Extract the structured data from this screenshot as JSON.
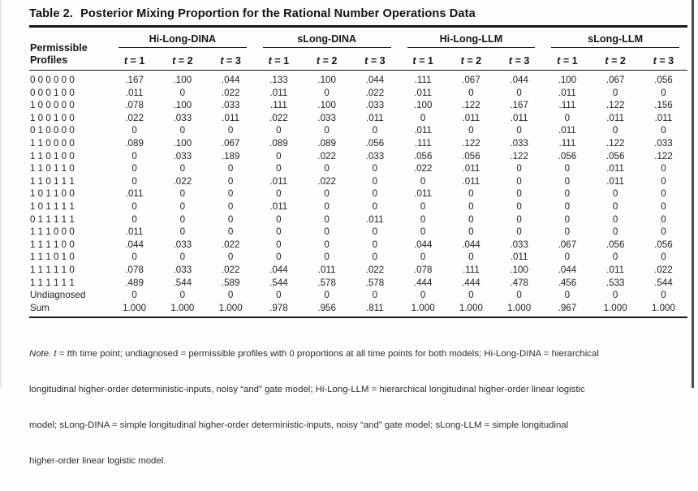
{
  "title": {
    "label": "Table 2.",
    "text": "Posterior Mixing Proportion for the Rational Number Operations Data"
  },
  "table": {
    "row_header": {
      "line1": "Permissible",
      "line2": "Profiles"
    },
    "groups": [
      "Hi-Long-DINA",
      "sLong-DINA",
      "Hi-Long-LLM",
      "sLong-LLM"
    ],
    "time_headers": [
      "t = 1",
      "t = 2",
      "t = 3"
    ],
    "rows": [
      {
        "profile": "0 0 0 0 0 0",
        "values": [
          ".167",
          ".100",
          ".044",
          ".133",
          ".100",
          ".044",
          ".111",
          ".067",
          ".044",
          ".100",
          ".067",
          ".056"
        ]
      },
      {
        "profile": "0 0 0 1 0 0",
        "values": [
          ".011",
          "0",
          ".022",
          ".011",
          "0",
          ".022",
          ".011",
          "0",
          "0",
          ".011",
          "0",
          "0"
        ]
      },
      {
        "profile": "1 0 0 0 0 0",
        "values": [
          ".078",
          ".100",
          ".033",
          ".111",
          ".100",
          ".033",
          ".100",
          ".122",
          ".167",
          ".111",
          ".122",
          ".156"
        ]
      },
      {
        "profile": "1 0 0 1 0 0",
        "values": [
          ".022",
          ".033",
          ".011",
          ".022",
          ".033",
          ".011",
          "0",
          ".011",
          ".011",
          "0",
          ".011",
          ".011"
        ]
      },
      {
        "profile": "0 1 0 0 0 0",
        "values": [
          "0",
          "0",
          "0",
          "0",
          "0",
          "0",
          ".011",
          "0",
          "0",
          ".011",
          "0",
          "0"
        ]
      },
      {
        "profile": "1 1 0 0 0 0",
        "values": [
          ".089",
          ".100",
          ".067",
          ".089",
          ".089",
          ".056",
          ".111",
          ".122",
          ".033",
          ".111",
          ".122",
          ".033"
        ]
      },
      {
        "profile": "1 1 0 1 0 0",
        "values": [
          "0",
          ".033",
          ".189",
          "0",
          ".022",
          ".033",
          ".056",
          ".056",
          ".122",
          ".056",
          ".056",
          ".122"
        ]
      },
      {
        "profile": "1 1 0 1 1 0",
        "values": [
          "0",
          "0",
          "0",
          "0",
          "0",
          "0",
          ".022",
          ".011",
          "0",
          "0",
          ".011",
          "0"
        ]
      },
      {
        "profile": "1 1 0 1 1 1",
        "values": [
          "0",
          ".022",
          "0",
          ".011",
          ".022",
          "0",
          "0",
          ".011",
          "0",
          "0",
          ".011",
          "0"
        ]
      },
      {
        "profile": "1 0 1 1 0 0",
        "values": [
          ".011",
          "0",
          "0",
          "0",
          "0",
          "0",
          ".011",
          "0",
          "0",
          "0",
          "0",
          "0"
        ]
      },
      {
        "profile": "1 0 1 1 1 1",
        "values": [
          "0",
          "0",
          "0",
          ".011",
          "0",
          "0",
          "0",
          "0",
          "0",
          "0",
          "0",
          "0"
        ]
      },
      {
        "profile": "0 1 1 1 1 1",
        "values": [
          "0",
          "0",
          "0",
          "0",
          "0",
          ".011",
          "0",
          "0",
          "0",
          "0",
          "0",
          "0"
        ]
      },
      {
        "profile": "1 1 1 0 0 0",
        "values": [
          ".011",
          "0",
          "0",
          "0",
          "0",
          "0",
          "0",
          "0",
          "0",
          "0",
          "0",
          "0"
        ]
      },
      {
        "profile": "1 1 1 1 0 0",
        "values": [
          ".044",
          ".033",
          ".022",
          "0",
          "0",
          "0",
          ".044",
          ".044",
          ".033",
          ".067",
          ".056",
          ".056"
        ]
      },
      {
        "profile": "1 1 1 0 1 0",
        "values": [
          "0",
          "0",
          "0",
          "0",
          "0",
          "0",
          "0",
          "0",
          ".011",
          "0",
          "0",
          "0"
        ]
      },
      {
        "profile": "1 1 1 1 1 0",
        "values": [
          ".078",
          ".033",
          ".022",
          ".044",
          ".011",
          ".022",
          ".078",
          ".111",
          ".100",
          ".044",
          ".011",
          ".022"
        ]
      },
      {
        "profile": "1 1 1 1 1 1",
        "values": [
          ".489",
          ".544",
          ".589",
          ".544",
          ".578",
          ".578",
          ".444",
          ".444",
          ".478",
          ".456",
          ".533",
          ".544"
        ]
      },
      {
        "profile": "Undiagnosed",
        "values": [
          "0",
          "0",
          "0",
          "0",
          "0",
          "0",
          "0",
          "0",
          "0",
          "0",
          "0",
          "0"
        ]
      },
      {
        "profile": "Sum",
        "values": [
          "1.000",
          "1.000",
          "1.000",
          ".978",
          ".956",
          ".811",
          "1.000",
          "1.000",
          "1.000",
          ".967",
          "1.000",
          "1.000"
        ]
      }
    ]
  },
  "note": {
    "label": "Note.",
    "seg_t1": " t",
    "seg_eq": " = ",
    "seg_t2": "t",
    "line1_rest": "th time point; undiagnosed = permissible profiles with 0 proportions at all time points for both models; Hi-Long-DINA = hierarchical",
    "line2": "longitudinal higher-order deterministic-inputs, noisy “and” gate model; Hi-Long-LLM = hierarchical longitudinal higher-order linear logistic",
    "line3": "model; sLong-DINA = simple longitudinal higher-order deterministic-inputs, noisy “and” gate model; sLong-LLM = simple longitudinal",
    "line4": "higher-order linear logistic model."
  }
}
